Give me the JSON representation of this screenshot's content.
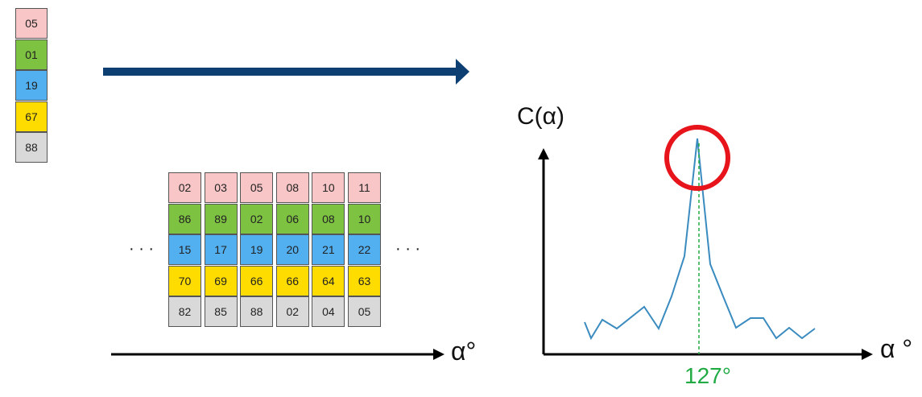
{
  "query_column": {
    "values": [
      "05",
      "01",
      "19",
      "67",
      "88"
    ],
    "row_colors": [
      "#f8c6c6",
      "#7ec242",
      "#52aff0",
      "#ffdc00",
      "#d9d9d9"
    ]
  },
  "reference_grid": {
    "columns": [
      [
        "02",
        "86",
        "15",
        "70",
        "82"
      ],
      [
        "03",
        "89",
        "17",
        "69",
        "85"
      ],
      [
        "05",
        "02",
        "19",
        "66",
        "88"
      ],
      [
        "08",
        "06",
        "20",
        "66",
        "02"
      ],
      [
        "10",
        "08",
        "21",
        "64",
        "04"
      ],
      [
        "11",
        "10",
        "22",
        "63",
        "05"
      ]
    ],
    "left_ellipsis": "· · ·",
    "right_ellipsis": "· · ·",
    "axis_label": "α°"
  },
  "chart": {
    "ylabel": "C(α)",
    "xlabel": "α °",
    "peak_label": "127°",
    "peak_label_color": "#22aa44",
    "circle_color": "#e8141c",
    "line_color": "#3a8bbf",
    "arrow_color": "#0d3f73"
  }
}
